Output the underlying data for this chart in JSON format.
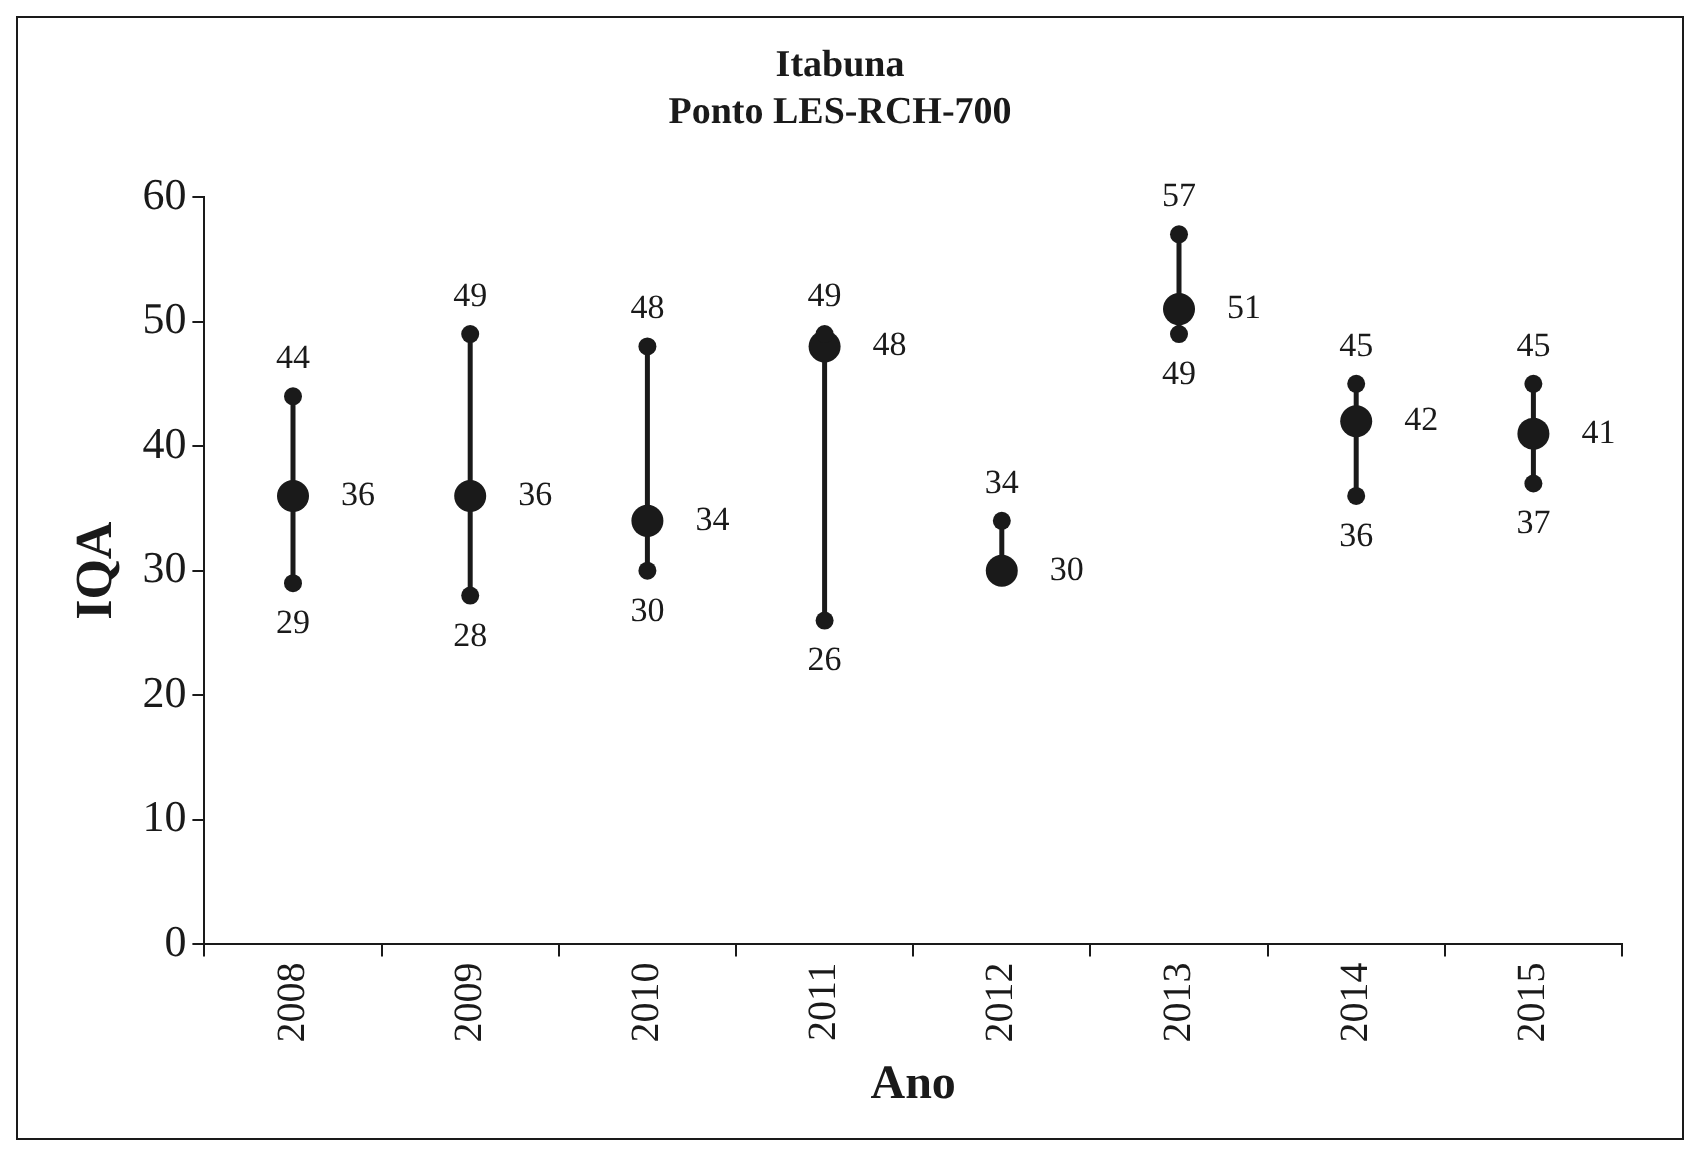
{
  "chart_data": {
    "type": "scatter",
    "title": "Itabuna",
    "subtitle": "Ponto LES-RCH-700",
    "xlabel": "Ano",
    "ylabel": "IQA",
    "categories": [
      "2008",
      "2009",
      "2010",
      "2011",
      "2012",
      "2013",
      "2014",
      "2015"
    ],
    "series": [
      {
        "color": "#1a1a1a",
        "values": [
          44,
          49,
          48,
          49,
          34,
          57,
          45,
          45
        ]
      },
      {
        "color": "#1a1a1a",
        "values": [
          29,
          28,
          30,
          26,
          null,
          49,
          36,
          37
        ]
      },
      {
        "color": "#1a1a1a",
        "values": [
          36,
          36,
          34,
          48,
          30,
          51,
          42,
          41
        ]
      }
    ],
    "ylim": [
      0,
      60
    ],
    "yticks": [
      0,
      10,
      20,
      30,
      40,
      50,
      60
    ],
    "grid": false,
    "legend": false,
    "marker": "circle",
    "data_labels": true
  }
}
